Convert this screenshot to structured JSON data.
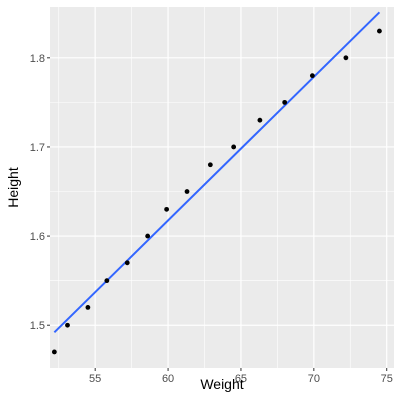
{
  "chart_data": {
    "type": "scatter",
    "xlabel": "Weight",
    "ylabel": "Height",
    "xlim": [
      51.9,
      75.5
    ],
    "ylim": [
      1.452,
      1.857
    ],
    "x_major_ticks": [
      55,
      60,
      65,
      70,
      75
    ],
    "y_major_ticks": [
      1.5,
      1.6,
      1.7,
      1.8
    ],
    "x_minor_ticks": [
      52.5,
      57.5,
      62.5,
      67.5,
      72.5
    ],
    "y_minor_ticks": [
      1.55,
      1.65,
      1.75
    ],
    "x_tick_labels": [
      "55",
      "60",
      "65",
      "70",
      "75"
    ],
    "y_tick_labels": [
      "1.5",
      "1.6",
      "1.7",
      "1.8"
    ],
    "grid": true,
    "points": [
      {
        "x": 52.2,
        "y": 1.47
      },
      {
        "x": 53.1,
        "y": 1.5
      },
      {
        "x": 54.5,
        "y": 1.52
      },
      {
        "x": 55.8,
        "y": 1.55
      },
      {
        "x": 57.2,
        "y": 1.57
      },
      {
        "x": 58.6,
        "y": 1.6
      },
      {
        "x": 59.9,
        "y": 1.63
      },
      {
        "x": 61.3,
        "y": 1.65
      },
      {
        "x": 62.9,
        "y": 1.68
      },
      {
        "x": 64.5,
        "y": 1.7
      },
      {
        "x": 66.3,
        "y": 1.73
      },
      {
        "x": 68.0,
        "y": 1.75
      },
      {
        "x": 69.9,
        "y": 1.78
      },
      {
        "x": 72.2,
        "y": 1.8
      },
      {
        "x": 74.5,
        "y": 1.83
      }
    ],
    "fit_line": [
      {
        "x": 52.2,
        "y": 1.492
      },
      {
        "x": 74.5,
        "y": 1.851
      }
    ],
    "colors": {
      "panel": "#ebebeb",
      "grid": "#ffffff",
      "point": "#000000",
      "fit": "#3366ff"
    }
  }
}
